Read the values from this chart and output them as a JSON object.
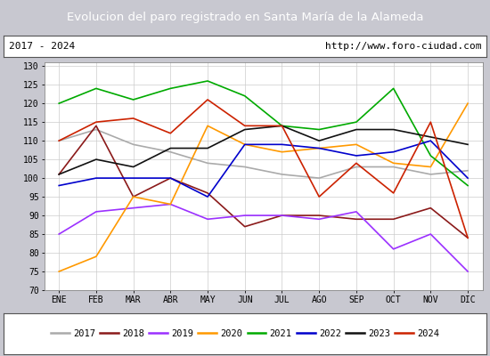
{
  "title": "Evolucion del paro registrado en Santa María de la Alameda",
  "subtitle_left": "2017 - 2024",
  "subtitle_right": "http://www.foro-ciudad.com",
  "title_bg": "#5b8dd9",
  "months": [
    "ENE",
    "FEB",
    "MAR",
    "ABR",
    "MAY",
    "JUN",
    "JUL",
    "AGO",
    "SEP",
    "OCT",
    "NOV",
    "DIC"
  ],
  "ylim": [
    70,
    131
  ],
  "yticks": [
    70,
    75,
    80,
    85,
    90,
    95,
    100,
    105,
    110,
    115,
    120,
    125,
    130
  ],
  "series": {
    "2017": {
      "color": "#aaaaaa",
      "data": [
        110,
        113,
        109,
        107,
        104,
        103,
        101,
        100,
        103,
        103,
        101,
        102
      ]
    },
    "2018": {
      "color": "#8b1a1a",
      "data": [
        101,
        114,
        95,
        100,
        96,
        87,
        90,
        90,
        89,
        89,
        92,
        84
      ]
    },
    "2019": {
      "color": "#9b30ff",
      "data": [
        85,
        91,
        92,
        93,
        89,
        90,
        90,
        89,
        91,
        81,
        85,
        75
      ]
    },
    "2020": {
      "color": "#ff9900",
      "data": [
        75,
        79,
        95,
        93,
        114,
        109,
        107,
        108,
        109,
        104,
        103,
        120
      ]
    },
    "2021": {
      "color": "#00aa00",
      "data": [
        120,
        124,
        121,
        124,
        126,
        122,
        114,
        113,
        115,
        124,
        106,
        98
      ]
    },
    "2022": {
      "color": "#0000cc",
      "data": [
        98,
        100,
        100,
        100,
        95,
        109,
        109,
        108,
        106,
        107,
        110,
        100
      ]
    },
    "2023": {
      "color": "#111111",
      "data": [
        101,
        105,
        103,
        108,
        108,
        113,
        114,
        110,
        113,
        113,
        111,
        109
      ]
    },
    "2024": {
      "color": "#cc2200",
      "data": [
        110,
        115,
        116,
        112,
        121,
        114,
        114,
        95,
        104,
        96,
        115,
        84
      ]
    }
  }
}
